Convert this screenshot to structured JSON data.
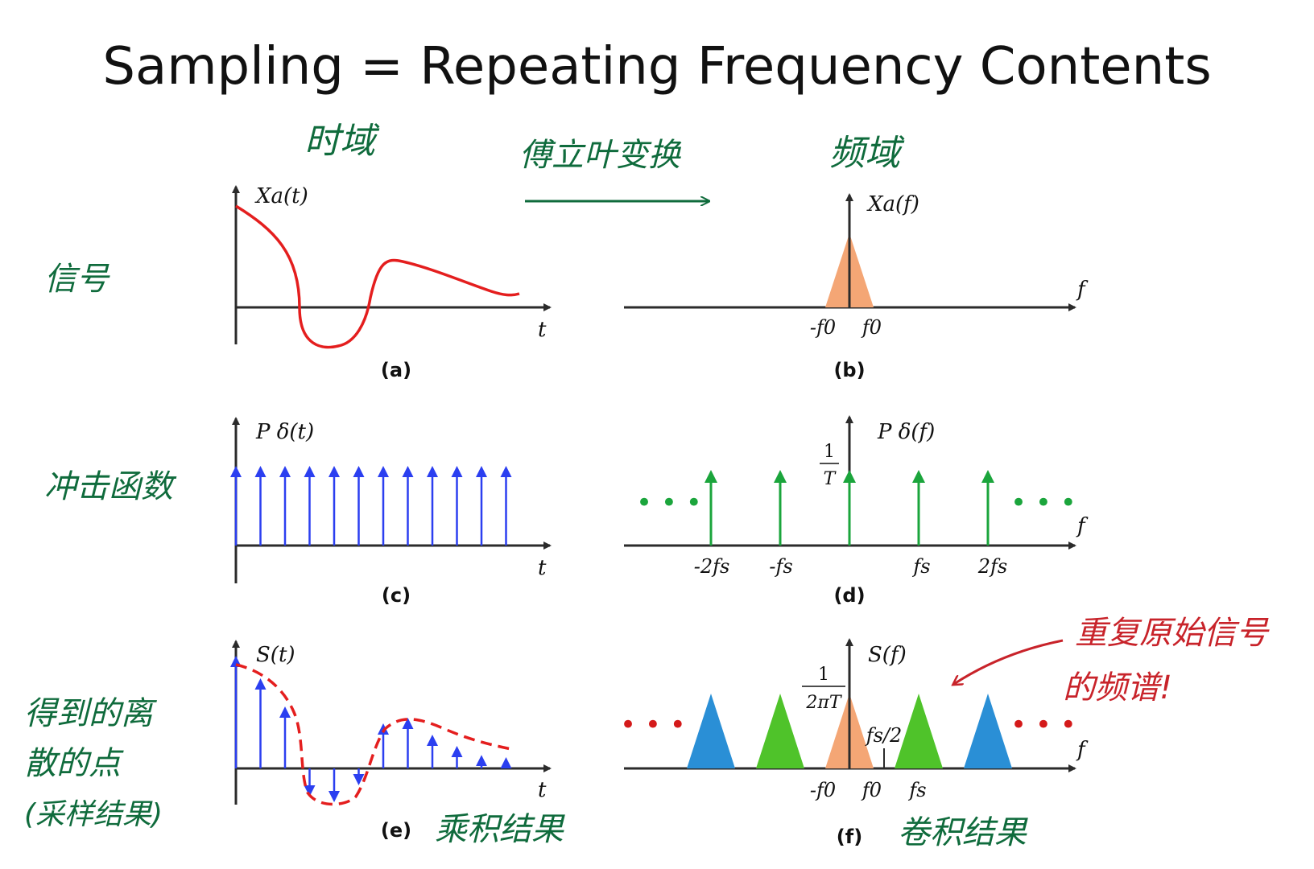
{
  "title": "Sampling = Repeating Frequency Contents",
  "annotations": {
    "time_domain": "时域",
    "fourier": "傅立叶变换",
    "freq_domain": "频域",
    "signal": "信号",
    "impulse": "冲击函数",
    "discrete_line1": "得到的离",
    "discrete_line2": "散的点",
    "discrete_line3": "(采样结果)",
    "product": "乘积结果",
    "convolution": "卷积结果",
    "repeat_line1": "重复原始信号",
    "repeat_line2": "的频谱!"
  },
  "panels": {
    "a": {
      "caption": "(a)",
      "ylabel": "Xa(t)",
      "xlabel": "t"
    },
    "b": {
      "caption": "(b)",
      "ylabel": "Xa(f)",
      "xlabel": "f",
      "ticks": [
        "-f0",
        "f0"
      ]
    },
    "c": {
      "caption": "(c)",
      "ylabel": "P δ(t)",
      "xlabel": "t"
    },
    "d": {
      "caption": "(d)",
      "ylabel": "P δ(f)",
      "xlabel": "f",
      "frac_num": "1",
      "frac_den": "T",
      "ticks": [
        "-2fs",
        "-fs",
        "fs",
        "2fs"
      ],
      "dots": "• • •"
    },
    "e": {
      "caption": "(e)",
      "ylabel": "S(t)",
      "xlabel": "t"
    },
    "f": {
      "caption": "(f)",
      "ylabel": "S(f)",
      "xlabel": "f",
      "frac_num": "1",
      "frac_den": "2πT",
      "half": "fs/2",
      "ticks": [
        "-f0",
        "f0",
        "fs"
      ],
      "dots": "• • •"
    }
  },
  "chart_data": {
    "type": "diagram",
    "impulse_count_time": 12,
    "sample_values_e": [
      1.0,
      0.8,
      0.55,
      -0.25,
      -0.3,
      -0.15,
      0.4,
      0.45,
      0.3,
      0.2,
      0.12,
      0.1
    ],
    "spectrum_d": {
      "positions": [
        -2,
        -1,
        0,
        1,
        2
      ],
      "unit": "fs",
      "height": "1/T"
    },
    "spectrum_f": {
      "copies": [
        -2,
        -1,
        0,
        1,
        2
      ],
      "colors": [
        "#2a8fd6",
        "#4fc32a",
        "#f4a675",
        "#4fc32a",
        "#2a8fd6"
      ]
    }
  },
  "colors": {
    "signal": "#e41e1e",
    "impulse_time": "#2b3ff0",
    "impulse_freq": "#1ba53c",
    "dots_d": "#1ba53c",
    "dots_f": "#d41a1a",
    "orange": "#f4a675",
    "green": "#4fc32a",
    "blue": "#2a8fd6"
  }
}
